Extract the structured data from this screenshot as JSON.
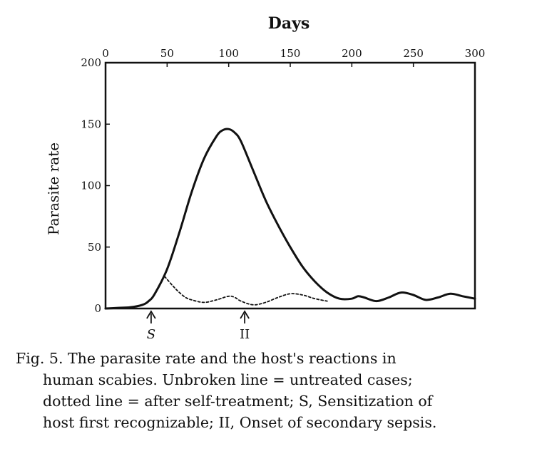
{
  "chart_data": {
    "type": "line",
    "title": "",
    "xlabel": "Days",
    "ylabel": "Parasite rate",
    "xlim": [
      0,
      300
    ],
    "ylim": [
      0,
      200
    ],
    "x_ticks": [
      "0",
      "50",
      "100",
      "150",
      "200",
      "250",
      "300"
    ],
    "y_ticks": [
      "0",
      "50",
      "100",
      "150",
      "200"
    ],
    "grid": false,
    "legend": "none",
    "series": [
      {
        "style": "solid",
        "x": [
          0,
          10,
          20,
          30,
          35,
          40,
          50,
          60,
          70,
          80,
          90,
          95,
          100,
          105,
          110,
          120,
          130,
          140,
          150,
          160,
          170,
          180,
          190,
          200,
          205,
          210,
          220,
          230,
          240,
          250,
          260,
          270,
          280,
          290,
          300
        ],
        "y": [
          0,
          0.5,
          1,
          3,
          6,
          12,
          32,
          62,
          95,
          122,
          140,
          145,
          146,
          143,
          136,
          112,
          88,
          68,
          50,
          34,
          22,
          13,
          8,
          8,
          10,
          9,
          6,
          9,
          13,
          11,
          7,
          9,
          12,
          10,
          8
        ]
      },
      {
        "style": "dotted",
        "x": [
          48,
          55,
          60,
          65,
          70,
          80,
          90,
          100,
          105,
          110,
          120,
          130,
          140,
          150,
          160,
          170,
          180
        ],
        "y": [
          26,
          18,
          13,
          9,
          7,
          5,
          7,
          10,
          9,
          6,
          3,
          5,
          9,
          12,
          11,
          8,
          6
        ]
      }
    ],
    "annotations": [
      {
        "label": "S",
        "x": 37
      },
      {
        "label": "II",
        "x": 113
      }
    ]
  },
  "caption": {
    "line1": "Fig. 5. The parasite rate and the host's reactions in",
    "line2": "human scabies. Unbroken line = untreated cases;",
    "line3": "dotted line = after self-treatment; S, Sensitization of",
    "line4": "host first recognizable; II, Onset of secondary sepsis."
  }
}
